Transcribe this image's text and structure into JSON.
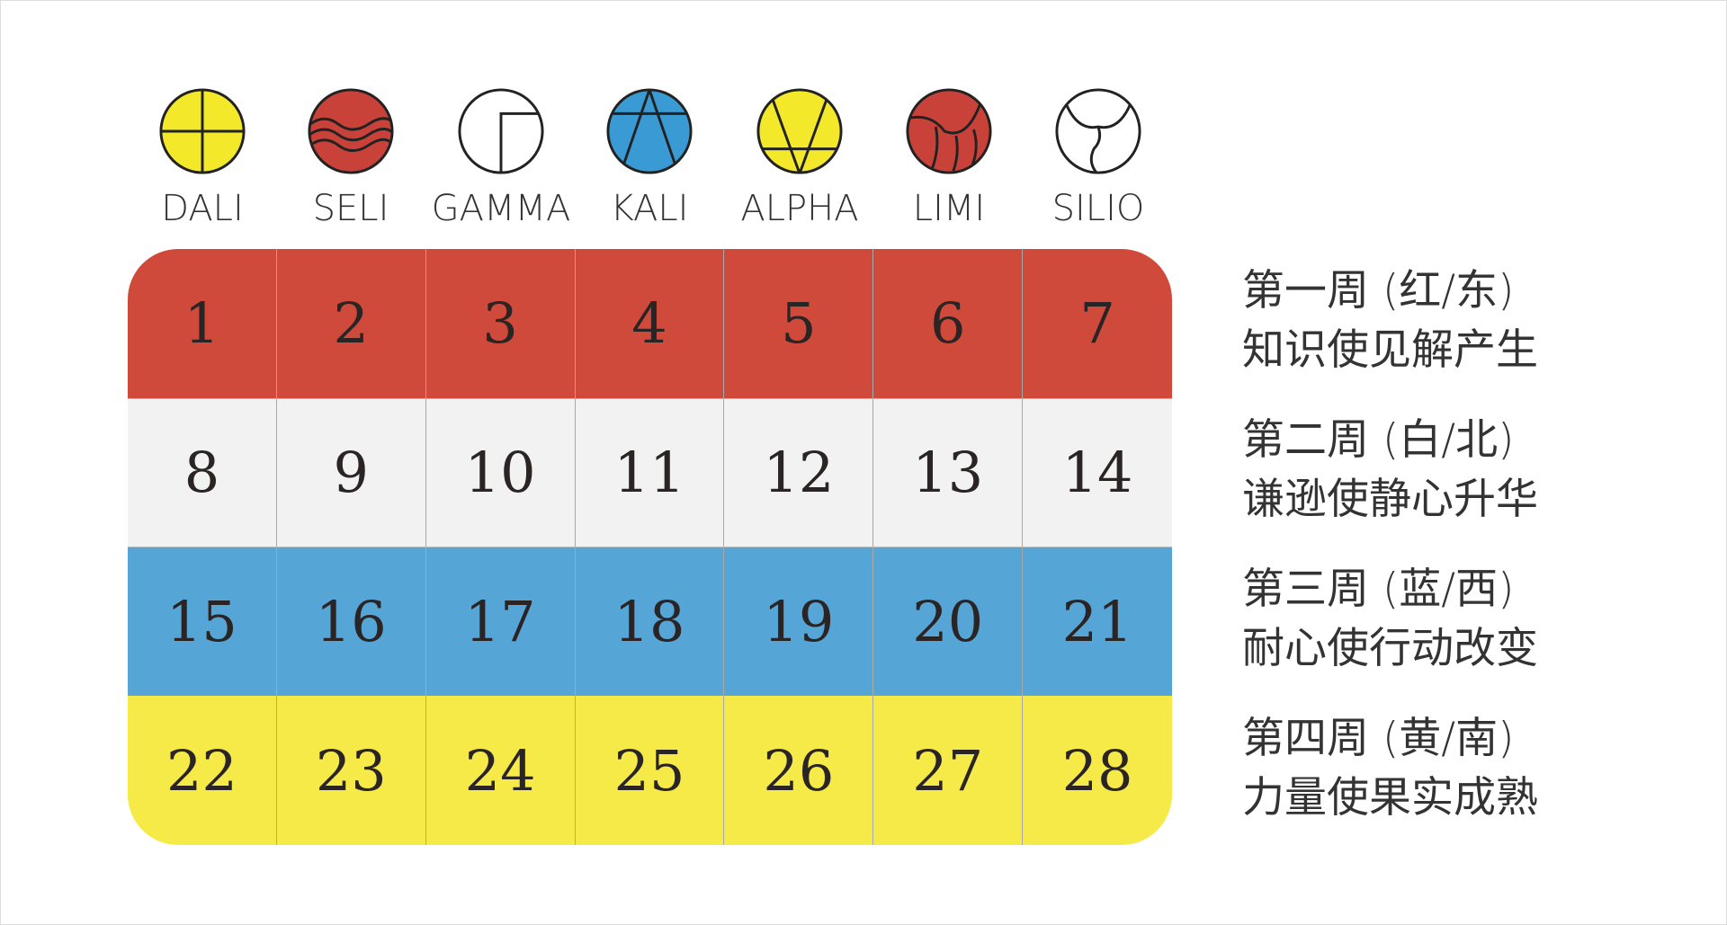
{
  "glyphs": [
    {
      "label": "DALI",
      "icon": "dali-cross-icon",
      "color": "#f3e92a"
    },
    {
      "label": "SELI",
      "icon": "seli-waves-icon",
      "color": "#c9423a"
    },
    {
      "label": "GAMMA",
      "icon": "gamma-icon",
      "color": "#ffffff"
    },
    {
      "label": "KALI",
      "icon": "kali-a-icon",
      "color": "#3a9ad4"
    },
    {
      "label": "ALPHA",
      "icon": "alpha-v-icon",
      "color": "#f3e92a"
    },
    {
      "label": "LIMI",
      "icon": "limi-icon",
      "color": "#c9423a"
    },
    {
      "label": "SILIO",
      "icon": "silio-icon",
      "color": "#ffffff"
    }
  ],
  "rows": [
    {
      "color": "#cf4a3b",
      "days": [
        "1",
        "2",
        "3",
        "4",
        "5",
        "6",
        "7"
      ],
      "title": "第一周 (红/东)",
      "subtitle": "知识使见解产生"
    },
    {
      "color": "#f2f2f2",
      "days": [
        "8",
        "9",
        "10",
        "11",
        "12",
        "13",
        "14"
      ],
      "title": "第二周 (白/北)",
      "subtitle": "谦逊使静心升华"
    },
    {
      "color": "#55a5d6",
      "days": [
        "15",
        "16",
        "17",
        "18",
        "19",
        "20",
        "21"
      ],
      "title": "第三周 (蓝/西)",
      "subtitle": "耐心使行动改变"
    },
    {
      "color": "#f5ea48",
      "days": [
        "22",
        "23",
        "24",
        "25",
        "26",
        "27",
        "28"
      ],
      "title": "第四周 (黄/南)",
      "subtitle": "力量使果实成熟"
    }
  ]
}
